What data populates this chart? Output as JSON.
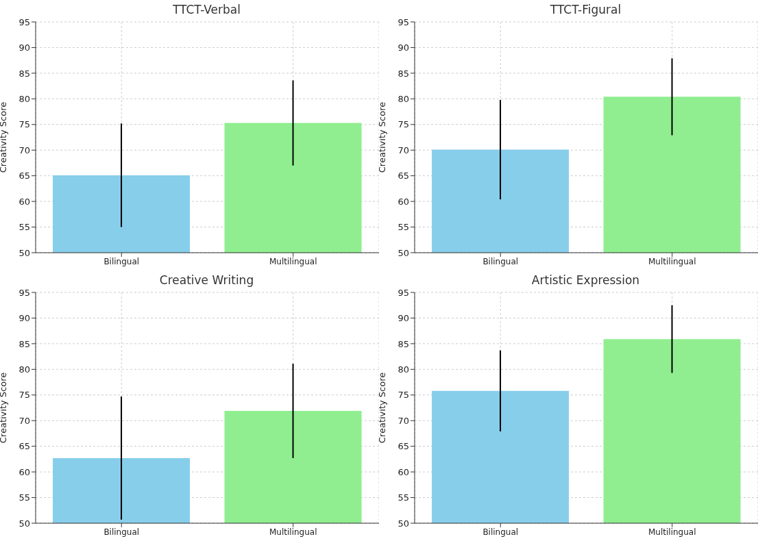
{
  "chart_data": [
    {
      "type": "bar",
      "title": "TTCT-Verbal",
      "ylabel": "Creativity Score",
      "categories": [
        "Bilingual",
        "Multilingual"
      ],
      "values": [
        65.1,
        75.3
      ],
      "errors": [
        10.1,
        8.3
      ],
      "colors": [
        "#87ceeb",
        "#90ee90"
      ],
      "ylim": [
        50,
        95
      ],
      "yticks": [
        50,
        55,
        60,
        65,
        70,
        75,
        80,
        85,
        90,
        95
      ],
      "grid": true
    },
    {
      "type": "bar",
      "title": "TTCT-Figural",
      "ylabel": "Creativity Score",
      "categories": [
        "Bilingual",
        "Multilingual"
      ],
      "values": [
        70.1,
        80.4
      ],
      "errors": [
        9.7,
        7.5
      ],
      "colors": [
        "#87ceeb",
        "#90ee90"
      ],
      "ylim": [
        50,
        95
      ],
      "yticks": [
        50,
        55,
        60,
        65,
        70,
        75,
        80,
        85,
        90,
        95
      ],
      "grid": true
    },
    {
      "type": "bar",
      "title": "Creative Writing",
      "ylabel": "Creativity Score",
      "categories": [
        "Bilingual",
        "Multilingual"
      ],
      "values": [
        62.7,
        71.9
      ],
      "errors": [
        12.0,
        9.2
      ],
      "colors": [
        "#87ceeb",
        "#90ee90"
      ],
      "ylim": [
        50,
        95
      ],
      "yticks": [
        50,
        55,
        60,
        65,
        70,
        75,
        80,
        85,
        90,
        95
      ],
      "grid": true
    },
    {
      "type": "bar",
      "title": "Artistic Expression",
      "ylabel": "Creativity Score",
      "categories": [
        "Bilingual",
        "Multilingual"
      ],
      "values": [
        75.8,
        85.9
      ],
      "errors": [
        7.9,
        6.6
      ],
      "colors": [
        "#87ceeb",
        "#90ee90"
      ],
      "ylim": [
        50,
        95
      ],
      "yticks": [
        50,
        55,
        60,
        65,
        70,
        75,
        80,
        85,
        90,
        95
      ],
      "grid": true
    }
  ]
}
